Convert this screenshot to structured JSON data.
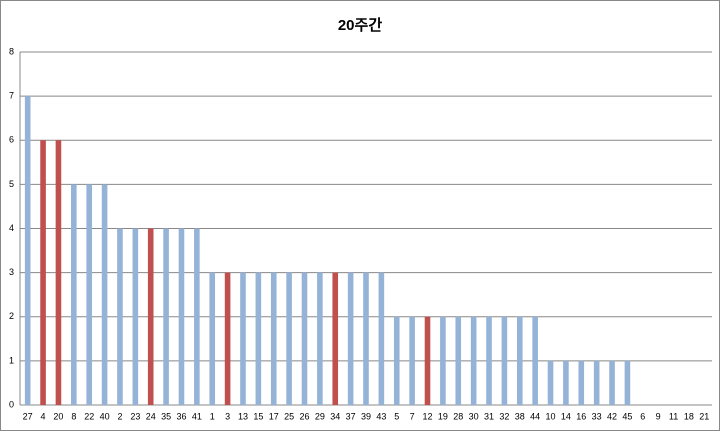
{
  "chart_data": {
    "type": "bar",
    "title": "20주간",
    "categories": [
      "27",
      "4",
      "20",
      "8",
      "22",
      "40",
      "2",
      "23",
      "24",
      "35",
      "36",
      "41",
      "1",
      "3",
      "13",
      "15",
      "17",
      "25",
      "26",
      "29",
      "34",
      "37",
      "39",
      "43",
      "5",
      "7",
      "12",
      "19",
      "28",
      "30",
      "31",
      "32",
      "38",
      "44",
      "10",
      "14",
      "16",
      "33",
      "42",
      "45",
      "6",
      "9",
      "11",
      "18",
      "21"
    ],
    "values": [
      7,
      6,
      6,
      5,
      5,
      5,
      4,
      4,
      4,
      4,
      4,
      4,
      3,
      3,
      3,
      3,
      3,
      3,
      3,
      3,
      3,
      3,
      3,
      3,
      2,
      2,
      2,
      2,
      2,
      2,
      2,
      2,
      2,
      2,
      1,
      1,
      1,
      1,
      1,
      1,
      0,
      0,
      0,
      0,
      0
    ],
    "colors": [
      "#95b3d7",
      "#c0504d",
      "#c0504d",
      "#95b3d7",
      "#95b3d7",
      "#95b3d7",
      "#95b3d7",
      "#95b3d7",
      "#c0504d",
      "#95b3d7",
      "#95b3d7",
      "#95b3d7",
      "#95b3d7",
      "#c0504d",
      "#95b3d7",
      "#95b3d7",
      "#95b3d7",
      "#95b3d7",
      "#95b3d7",
      "#95b3d7",
      "#c0504d",
      "#95b3d7",
      "#95b3d7",
      "#95b3d7",
      "#95b3d7",
      "#95b3d7",
      "#c0504d",
      "#95b3d7",
      "#95b3d7",
      "#95b3d7",
      "#95b3d7",
      "#95b3d7",
      "#95b3d7",
      "#95b3d7",
      "#95b3d7",
      "#95b3d7",
      "#95b3d7",
      "#95b3d7",
      "#95b3d7",
      "#95b3d7",
      "#95b3d7",
      "#95b3d7",
      "#95b3d7",
      "#95b3d7",
      "#95b3d7"
    ],
    "ylim": [
      0,
      8
    ],
    "yticks": [
      0,
      1,
      2,
      3,
      4,
      5,
      6,
      7,
      8
    ],
    "grid": true
  }
}
